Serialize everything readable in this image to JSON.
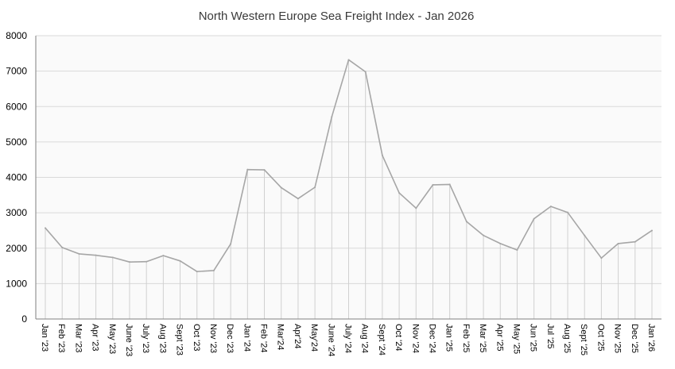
{
  "chart_data": {
    "type": "line",
    "title": "North Western Europe Sea Freight Index - Jan 2026",
    "xlabel": "",
    "ylabel": "",
    "ylim": [
      0,
      8000
    ],
    "yticks": [
      0,
      1000,
      2000,
      3000,
      4000,
      5000,
      6000,
      7000,
      8000
    ],
    "grid": true,
    "legend": "none",
    "colors": {
      "line": "#a6a6a6",
      "grid": "#d9d9d9",
      "plot_bg": "#fafafa",
      "drop_line": "#d0d0d0"
    },
    "categories": [
      "Jan '23",
      "Feb '23",
      "Mar '23",
      "Apr '23",
      "May '23",
      "June '23",
      "July '23",
      "Aug '23",
      "Sept '23",
      "Oct '23",
      "Nov '23",
      "Dec '23",
      "Jan '24",
      "Feb '24",
      "Mar'24",
      "Apr'24",
      "May'24",
      "June '24",
      "July '24",
      "Aug '24",
      "Sept '24",
      "Oct '24",
      "Nov '24",
      "Dec '24",
      "Jan '25",
      "Feb '25",
      "Mar '25",
      "Apr '25",
      "May '25",
      "Jun '25",
      "Jul '25",
      "Aug '25",
      "Sept '25",
      "Oct '25",
      "Nov '25",
      "Dec '25",
      "Jan '26"
    ],
    "series": [
      {
        "values": [
          2570,
          2020,
          1840,
          1800,
          1740,
          1610,
          1620,
          1790,
          1640,
          1340,
          1370,
          2120,
          4220,
          4210,
          3710,
          3400,
          3720,
          5710,
          7320,
          6980,
          4620,
          3560,
          3130,
          3790,
          3800,
          2750,
          2360,
          2130,
          1950,
          2830,
          3180,
          3010,
          2360,
          1720,
          2130,
          2180,
          2500
        ]
      }
    ]
  }
}
